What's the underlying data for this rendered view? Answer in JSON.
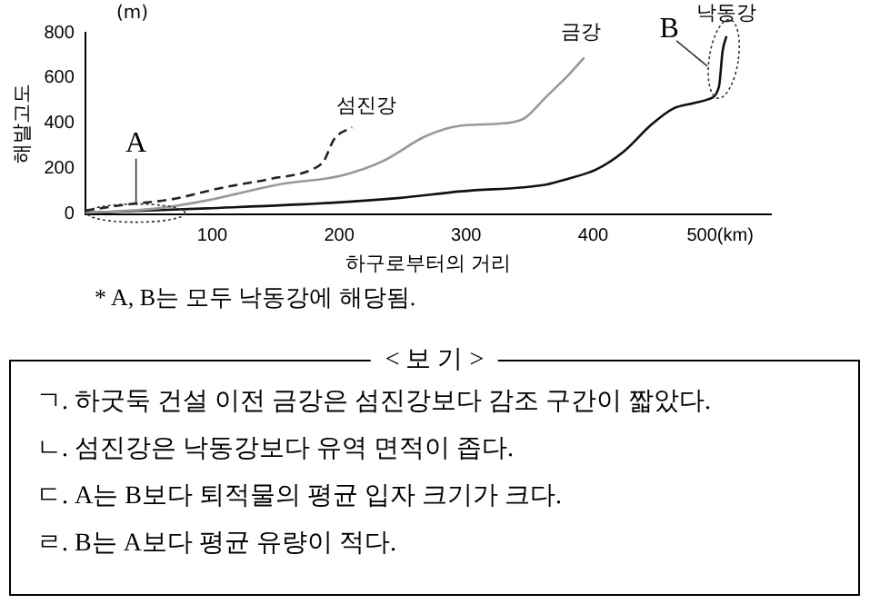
{
  "chart_data": {
    "type": "line",
    "xlabel": "하구로부터의 거리",
    "ylabel": "해발고도",
    "xlim": [
      0,
      540
    ],
    "ylim": [
      0,
      800
    ],
    "xticks": [
      100,
      200,
      300,
      400,
      {
        "value": 500,
        "label": "500(km)"
      }
    ],
    "yticks": [
      0,
      200,
      400,
      600,
      800
    ],
    "grid": false,
    "legend": false,
    "marker": "none",
    "series": [
      {
        "name": "섬진강",
        "color": "#222222",
        "line_style": "dashed",
        "x": [
          0,
          30,
          68,
          107,
          146,
          180,
          188,
          196,
          210
        ],
        "values": [
          15,
          40,
          65,
          115,
          155,
          200,
          235,
          330,
          383
        ]
      },
      {
        "name": "금강",
        "color": "#999999",
        "line_style": "solid",
        "x": [
          0,
          57,
          96,
          152,
          202,
          235,
          268,
          296,
          330,
          346,
          363,
          380,
          393
        ],
        "values": [
          5,
          25,
          60,
          130,
          170,
          235,
          343,
          390,
          400,
          423,
          517,
          610,
          690
        ]
      },
      {
        "name": "낙동강",
        "color": "#111111",
        "line_style": "solid",
        "x": [
          0,
          96,
          196,
          246,
          296,
          363,
          380,
          402,
          424,
          446,
          463,
          480,
          490,
          499,
          502,
          505
        ],
        "values": [
          5,
          25,
          50,
          70,
          100,
          130,
          155,
          195,
          275,
          395,
          465,
          490,
          505,
          560,
          720,
          785
        ]
      }
    ],
    "annotations": [
      "(m)",
      {
        "text": "A",
        "x": 40,
        "y": 20
      },
      {
        "text": "B",
        "x": 500,
        "y": 620
      },
      "* A, B는 모두 낙동강에 해당됨.",
      "< 보 기 >",
      "ㄱ. 하굿둑 건설 이전 금강은 섬진강보다 감조 구간이 짧았다.",
      "ㄴ. 섬진강은 낙동강보다 유역 면적이 좁다.",
      "ㄷ. A는 B보다 퇴적물의 평균 입자 크기가 크다.",
      "ㄹ. B는 A보다 평균 유량이 적다."
    ]
  }
}
